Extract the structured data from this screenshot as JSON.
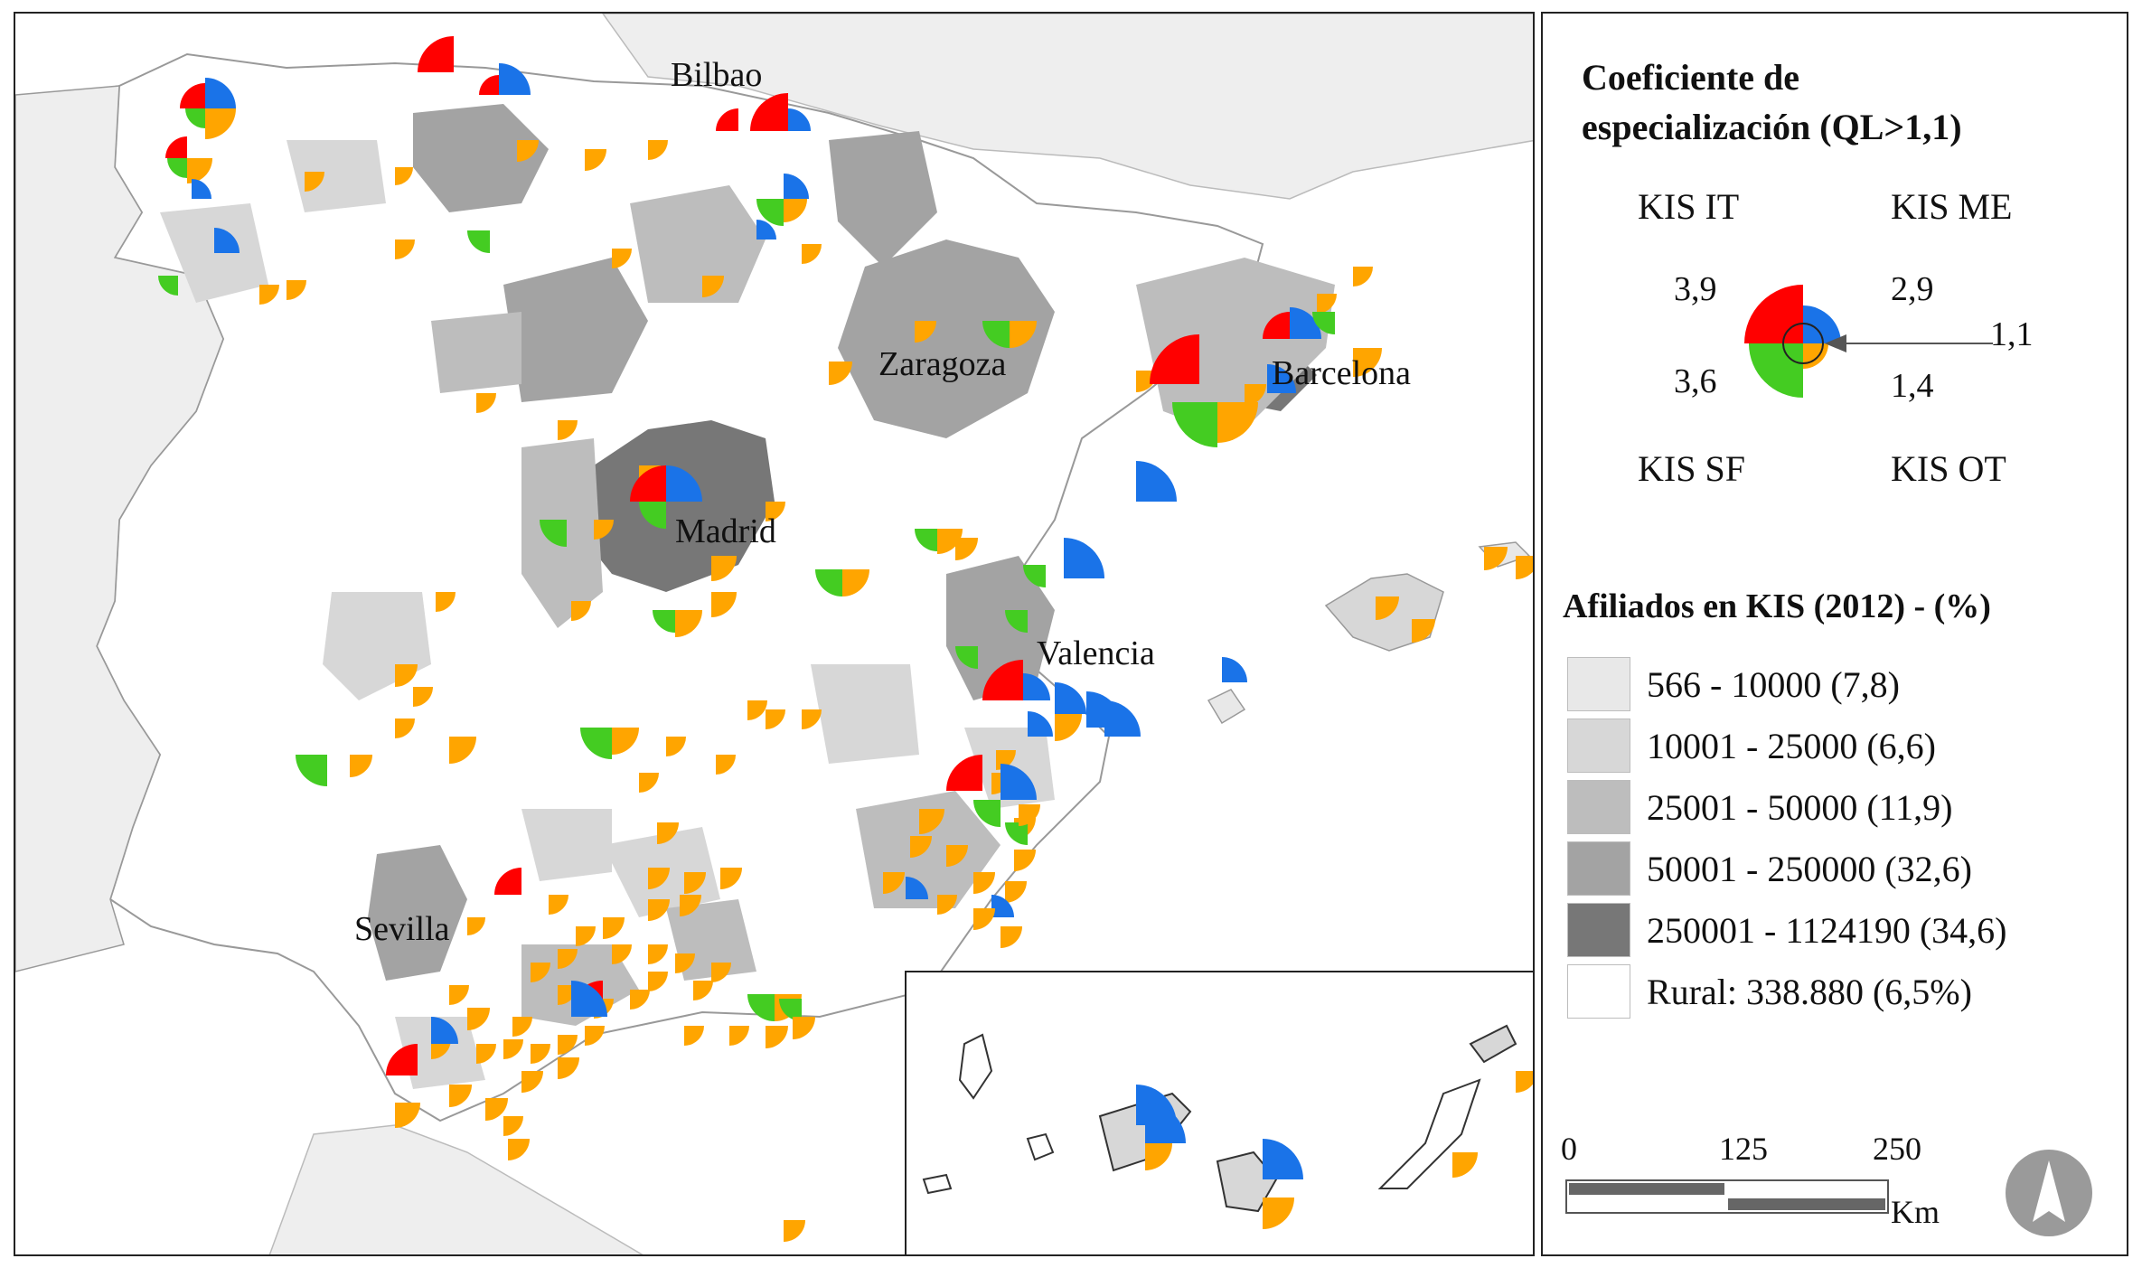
{
  "map": {
    "cities": [
      {
        "name": "Bilbao"
      },
      {
        "name": "Zaragoza"
      },
      {
        "name": "Barcelona"
      },
      {
        "name": "Madrid"
      },
      {
        "name": "Valencia"
      },
      {
        "name": "Sevilla"
      }
    ],
    "colors": {
      "sea": "#ffffff",
      "foreign_land": "#eeeeee",
      "rural": "#ffffff",
      "class1": "#e8e8e8",
      "class2": "#d7d7d7",
      "class3": "#bdbdbd",
      "class4": "#a3a3a3",
      "class5": "#777777",
      "kis_it": "#ff0000",
      "kis_me": "#1a73e8",
      "kis_sf": "#44cc22",
      "kis_ot": "#ffa500"
    }
  },
  "legend": {
    "title_line1": "Coeficiente de",
    "title_line2": "especialización (QL>1,1)",
    "kis_it": "KIS IT",
    "kis_me": "KIS ME",
    "kis_sf": "KIS SF",
    "kis_ot": "KIS OT",
    "ql_it": "3,9",
    "ql_me": "2,9",
    "ql_sf": "3,6",
    "ql_ot": "1,4",
    "ql_threshold": "1,1",
    "affiliates_title": "Afiliados en KIS (2012) - (%)",
    "classes": [
      "566 - 10000 (7,8)",
      "10001 - 25000 (6,6)",
      "25001 - 50000 (11,9)",
      "50001 - 250000 (32,6)",
      "250001 - 1124190 (34,6)",
      "Rural: 338.880 (6,5%)"
    ],
    "scale": {
      "ticks": [
        "0",
        "125",
        "250"
      ],
      "unit": "Km"
    },
    "north_icon": "north-arrow-icon"
  }
}
